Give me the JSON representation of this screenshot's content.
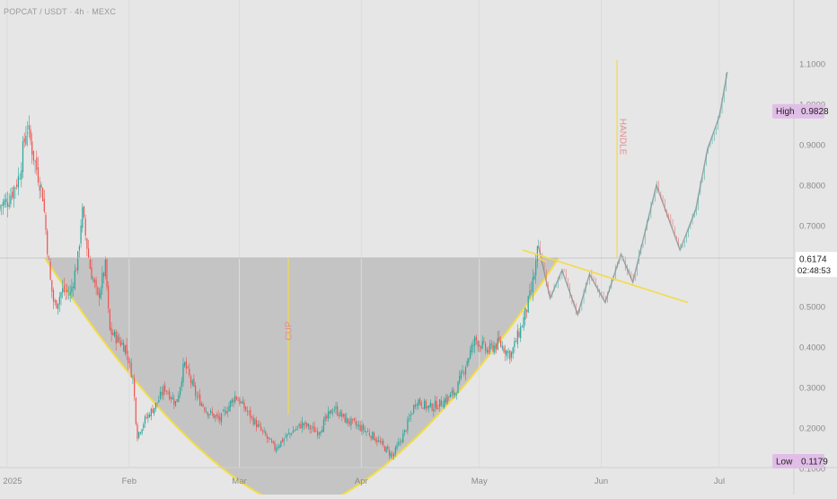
{
  "header": {
    "symbol_title": "POPCAT / USDT · 4h · MEXC"
  },
  "markers": {
    "high": {
      "label": "High",
      "value": "0.9828"
    },
    "low": {
      "label": "Low",
      "value": "0.1179"
    },
    "last": {
      "price": "0.6174",
      "countdown": "02:48:53"
    }
  },
  "colors": {
    "background": "#e6e6e6",
    "up": "#26a69a",
    "down": "#ef5350",
    "cup_fill": "#bdbdbd",
    "cup_line": "#f2dc46",
    "annotation_text": "#e88a8a",
    "hl_badge": "#e1bee7",
    "last_badge": "#ffffff"
  },
  "chart_data": {
    "type": "line",
    "title": "",
    "x_ticks": [
      "2025",
      "Feb",
      "Mar",
      "Apr",
      "May",
      "Jun",
      "Jul"
    ],
    "y_ticks": [
      "0.1000",
      "0.2000",
      "0.3000",
      "0.4000",
      "0.5000",
      "0.6000",
      "0.7000",
      "0.8000",
      "0.9000",
      "1.0000",
      "1.1000"
    ],
    "y_range": [
      0.02,
      1.14
    ],
    "x_range": [
      "2024-12-28",
      "2025-07-28"
    ],
    "series": [
      {
        "values": [
          [
            "2024-12-28",
            0.74
          ],
          [
            "2025-01-01",
            0.76
          ],
          [
            "2025-01-04",
            0.82
          ],
          [
            "2025-01-06",
            0.95
          ],
          [
            "2025-01-08",
            0.86
          ],
          [
            "2025-01-10",
            0.78
          ],
          [
            "2025-01-12",
            0.56
          ],
          [
            "2025-01-13",
            0.5
          ],
          [
            "2025-01-15",
            0.54
          ],
          [
            "2025-01-17",
            0.53
          ],
          [
            "2025-01-19",
            0.62
          ],
          [
            "2025-01-20",
            0.74
          ],
          [
            "2025-01-22",
            0.6
          ],
          [
            "2025-01-24",
            0.52
          ],
          [
            "2025-01-26",
            0.6
          ],
          [
            "2025-01-27",
            0.44
          ],
          [
            "2025-01-29",
            0.42
          ],
          [
            "2025-01-31",
            0.4
          ],
          [
            "2025-02-02",
            0.32
          ],
          [
            "2025-02-03",
            0.18
          ],
          [
            "2025-02-05",
            0.22
          ],
          [
            "2025-02-08",
            0.26
          ],
          [
            "2025-02-10",
            0.3
          ],
          [
            "2025-02-13",
            0.26
          ],
          [
            "2025-02-15",
            0.36
          ],
          [
            "2025-02-18",
            0.28
          ],
          [
            "2025-02-21",
            0.24
          ],
          [
            "2025-02-24",
            0.22
          ],
          [
            "2025-02-28",
            0.28
          ],
          [
            "2025-03-03",
            0.24
          ],
          [
            "2025-03-06",
            0.2
          ],
          [
            "2025-03-10",
            0.15
          ],
          [
            "2025-03-13",
            0.18
          ],
          [
            "2025-03-17",
            0.21
          ],
          [
            "2025-03-21",
            0.19
          ],
          [
            "2025-03-25",
            0.25
          ],
          [
            "2025-03-28",
            0.22
          ],
          [
            "2025-04-01",
            0.2
          ],
          [
            "2025-04-04",
            0.18
          ],
          [
            "2025-04-07",
            0.15
          ],
          [
            "2025-04-09",
            0.13
          ],
          [
            "2025-04-12",
            0.19
          ],
          [
            "2025-04-15",
            0.27
          ],
          [
            "2025-04-18",
            0.25
          ],
          [
            "2025-04-21",
            0.26
          ],
          [
            "2025-04-25",
            0.29
          ],
          [
            "2025-04-28",
            0.37
          ],
          [
            "2025-04-30",
            0.42
          ],
          [
            "2025-05-03",
            0.39
          ],
          [
            "2025-05-06",
            0.41
          ],
          [
            "2025-05-09",
            0.38
          ],
          [
            "2025-05-12",
            0.46
          ],
          [
            "2025-05-14",
            0.53
          ],
          [
            "2025-05-15",
            0.58
          ],
          [
            "2025-05-16",
            0.65
          ]
        ]
      },
      {
        "values": [
          [
            "2025-05-16",
            0.65
          ],
          [
            "2025-05-19",
            0.52
          ],
          [
            "2025-05-22",
            0.59
          ],
          [
            "2025-05-26",
            0.48
          ],
          [
            "2025-05-29",
            0.58
          ],
          [
            "2025-06-02",
            0.51
          ],
          [
            "2025-06-06",
            0.63
          ],
          [
            "2025-06-09",
            0.56
          ],
          [
            "2025-06-15",
            0.8
          ],
          [
            "2025-06-21",
            0.64
          ],
          [
            "2025-06-25",
            0.74
          ],
          [
            "2025-06-28",
            0.89
          ],
          [
            "2025-07-01",
            0.97
          ],
          [
            "2025-07-03",
            1.08
          ]
        ]
      }
    ],
    "annotations": [
      {
        "text": "CUP",
        "type": "cup_and_handle",
        "rim_level": 0.62,
        "bottom": 0.0
      },
      {
        "text": "HANDLE",
        "type": "vertical_marker",
        "date": "2025-06-05",
        "from": 0.62,
        "to": 1.11
      },
      {
        "type": "trendline",
        "from": [
          "2025-05-12",
          0.64
        ],
        "to": [
          "2025-06-23",
          0.51
        ]
      },
      {
        "type": "trendline",
        "from": [
          "2025-05-16",
          0.62
        ],
        "to": [
          "2025-05-18",
          0.61
        ]
      }
    ]
  }
}
